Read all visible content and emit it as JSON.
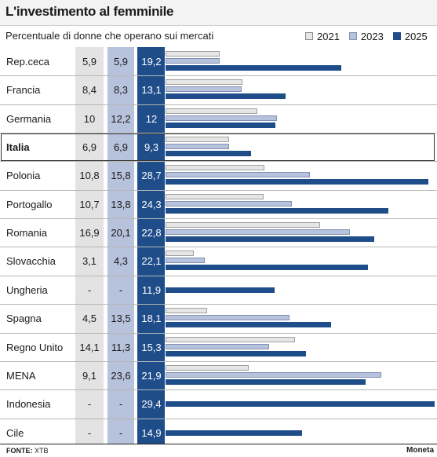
{
  "title": "L'investimento al femminile",
  "subtitle": "Percentuale di donne che operano sui mercati",
  "legend": [
    {
      "label": "2021",
      "color": "#e6e6e6"
    },
    {
      "label": "2023",
      "color": "#b7c2dc"
    },
    {
      "label": "2025",
      "color": "#1f4d8a"
    }
  ],
  "footer": {
    "source_label": "FONTE:",
    "source_value": "XTB",
    "brand": "Moneta"
  },
  "chart_data": {
    "type": "bar",
    "orientation": "horizontal",
    "title": "L'investimento al femminile",
    "subtitle": "Percentuale di donne che operano sui mercati",
    "categories": [
      "Rep.ceca",
      "Francia",
      "Germania",
      "Italia",
      "Polonia",
      "Portogallo",
      "Romania",
      "Slovacchia",
      "Ungheria",
      "Spagna",
      "Regno Unito",
      "MENA",
      "Indonesia",
      "Cile"
    ],
    "highlighted_category": "Italia",
    "series": [
      {
        "name": "2021",
        "color": "#e6e6e6",
        "values": [
          5.9,
          8.4,
          10,
          6.9,
          10.8,
          10.7,
          16.9,
          3.1,
          null,
          4.5,
          14.1,
          9.1,
          null,
          null
        ],
        "labels": [
          "5,9",
          "8,4",
          "10",
          "6,9",
          "10,8",
          "10,7",
          "16,9",
          "3,1",
          "-",
          "4,5",
          "14,1",
          "9,1",
          "-",
          "-"
        ]
      },
      {
        "name": "2023",
        "color": "#b7c2dc",
        "values": [
          5.9,
          8.3,
          12.2,
          6.9,
          15.8,
          13.8,
          20.1,
          4.3,
          null,
          13.5,
          11.3,
          23.6,
          null,
          null
        ],
        "labels": [
          "5,9",
          "8,3",
          "12,2",
          "6,9",
          "15,8",
          "13,8",
          "20,1",
          "4,3",
          "-",
          "13,5",
          "11,3",
          "23,6",
          "-",
          "-"
        ]
      },
      {
        "name": "2025",
        "color": "#1f4d8a",
        "values": [
          19.2,
          13.1,
          12,
          9.3,
          28.7,
          24.3,
          22.8,
          22.1,
          11.9,
          18.1,
          15.3,
          21.9,
          29.4,
          14.9
        ],
        "labels": [
          "19,2",
          "13,1",
          "12",
          "9,3",
          "28,7",
          "24,3",
          "22,8",
          "22,1",
          "11,9",
          "18,1",
          "15,3",
          "21,9",
          "29,4",
          "14,9"
        ]
      }
    ],
    "xlim": [
      0,
      29.4
    ],
    "grid": false,
    "legend_position": "top-right"
  }
}
